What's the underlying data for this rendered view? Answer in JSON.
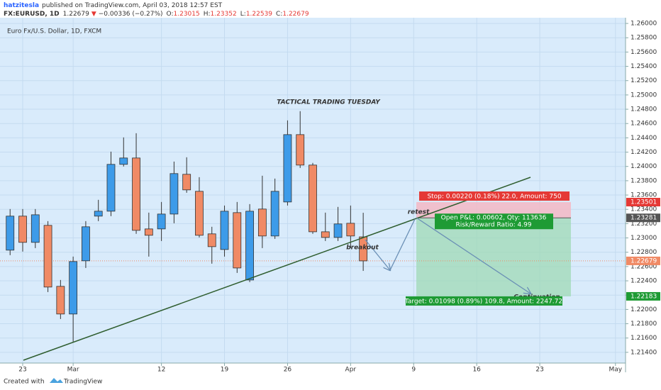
{
  "header": {
    "author": "hatzitesla",
    "published": "published on TradingView.com, April 03, 2018 12:57 EST",
    "symbol": "FX:EURUSD, 1D",
    "change_arrow": "▼",
    "change": "−0.00336 (−0.27%)",
    "ohlc_prefixes": [
      "O:",
      "H:",
      "L:",
      "C:"
    ]
  },
  "chart_data": {
    "type": "candlestick",
    "title": "TACTICAL TRADING TUESDAY",
    "subtitle": "Euro Fx/U.S. Dollar, 1D, FXCM",
    "x": [
      0,
      1,
      2,
      3,
      4,
      5,
      6,
      7,
      8,
      9,
      10,
      11,
      12,
      13,
      14,
      15,
      16,
      17,
      18,
      19,
      20,
      21,
      22,
      23,
      24,
      25,
      26,
      27,
      28
    ],
    "open": [
      1.22829,
      1.23305,
      1.22938,
      1.23176,
      1.22323,
      1.21936,
      1.2268,
      1.23305,
      1.23374,
      1.24029,
      1.24118,
      1.23126,
      1.23126,
      1.23334,
      1.2389,
      1.23652,
      1.23057,
      1.22838,
      1.23354,
      1.22412,
      1.23404,
      1.23027,
      1.23503,
      1.24445,
      1.24019,
      1.23086,
      1.23007,
      1.23205,
      1.23015
    ],
    "high": [
      1.23404,
      1.23404,
      1.23404,
      1.23235,
      1.22412,
      1.22739,
      1.23235,
      1.23533,
      1.24207,
      1.24406,
      1.24465,
      1.23354,
      1.23503,
      1.24068,
      1.24128,
      1.2385,
      1.23156,
      1.23453,
      1.23503,
      1.23473,
      1.2387,
      1.2383,
      1.24644,
      1.24773,
      1.24049,
      1.23354,
      1.23434,
      1.23453,
      1.23352
    ],
    "low": [
      1.22759,
      1.22809,
      1.22858,
      1.22243,
      1.21866,
      1.21549,
      1.2258,
      1.23235,
      1.23305,
      1.23999,
      1.23057,
      1.22739,
      1.22957,
      1.23205,
      1.23632,
      1.23007,
      1.2264,
      1.22739,
      1.22511,
      1.22382,
      1.22858,
      1.22987,
      1.23453,
      1.23979,
      1.23057,
      1.22957,
      1.22957,
      1.22858,
      1.22539
    ],
    "close": [
      1.23305,
      1.22938,
      1.23324,
      1.22313,
      1.21936,
      1.2267,
      1.23156,
      1.23374,
      1.24029,
      1.24118,
      1.23106,
      1.23037,
      1.23334,
      1.239,
      1.23672,
      1.23037,
      1.22878,
      1.23374,
      1.2258,
      1.23374,
      1.23027,
      1.23652,
      1.24445,
      1.24019,
      1.23086,
      1.23007,
      1.23196,
      1.23027,
      1.22679
    ],
    "up_color": "#3d9be9",
    "down_color": "#f08a65",
    "xlim": [
      -0.8,
      48.8
    ],
    "xticks": [
      {
        "value": 1,
        "label": "23"
      },
      {
        "value": 5,
        "label": "Mar"
      },
      {
        "value": 12,
        "label": "12"
      },
      {
        "value": 17,
        "label": "19"
      },
      {
        "value": 22,
        "label": "26"
      },
      {
        "value": 27,
        "label": "Apr"
      },
      {
        "value": 32,
        "label": "9"
      },
      {
        "value": 37,
        "label": "16"
      },
      {
        "value": 42,
        "label": "23"
      },
      {
        "value": 48,
        "label": "May"
      }
    ],
    "ylim": [
      1.2125,
      1.2608
    ],
    "yticks": [
      {
        "value": 1.214,
        "label": "1.21400"
      },
      {
        "value": 1.216,
        "label": "1.21600"
      },
      {
        "value": 1.218,
        "label": "1.21800"
      },
      {
        "value": 1.22,
        "label": "1.22000"
      },
      {
        "value": 1.222,
        "label": "1.22200"
      },
      {
        "value": 1.224,
        "label": "1.22400"
      },
      {
        "value": 1.226,
        "label": "1.22600"
      },
      {
        "value": 1.228,
        "label": "1.22800"
      },
      {
        "value": 1.23,
        "label": "1.23000"
      },
      {
        "value": 1.232,
        "label": "1.23200"
      },
      {
        "value": 1.234,
        "label": "1.23400"
      },
      {
        "value": 1.236,
        "label": "1.23600"
      },
      {
        "value": 1.238,
        "label": "1.23800"
      },
      {
        "value": 1.24,
        "label": "1.24000"
      },
      {
        "value": 1.242,
        "label": "1.24200"
      },
      {
        "value": 1.244,
        "label": "1.24400"
      },
      {
        "value": 1.246,
        "label": "1.24600"
      },
      {
        "value": 1.248,
        "label": "1.24800"
      },
      {
        "value": 1.25,
        "label": "1.25000"
      },
      {
        "value": 1.252,
        "label": "1.25200"
      },
      {
        "value": 1.254,
        "label": "1.25400"
      },
      {
        "value": 1.256,
        "label": "1.25600"
      },
      {
        "value": 1.258,
        "label": "1.25800"
      },
      {
        "value": 1.26,
        "label": "1.26000"
      }
    ],
    "grid": true,
    "annotations": [
      "retest",
      "breakout",
      "Continuation"
    ],
    "position": {
      "stop_price": 1.23501,
      "entry_price": 1.23281,
      "target_price": 1.22183,
      "stop_label": "Stop: 0.00220 (0.18%) 22.0, Amount: 750",
      "pnl_label": "Open P&L: 0.00602, Qty: 113636",
      "ratio_label": "Risk/Reward Ratio: 4.99",
      "target_label": "Target: 0.01098 (0.89%) 109.8, Amount: 2247.72"
    }
  },
  "footer": {
    "created": "Created with",
    "brand": "TradingView"
  }
}
